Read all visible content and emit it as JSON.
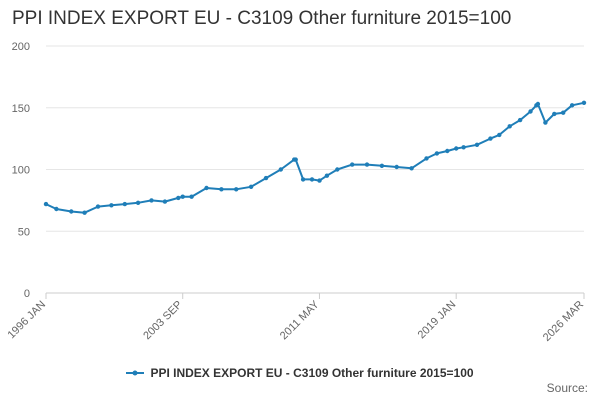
{
  "chart_data": {
    "type": "line",
    "title": "PPI INDEX EXPORT EU - C3109 Other furniture 2015=100",
    "xlabel": "",
    "ylabel": "",
    "ylim": [
      0,
      200
    ],
    "yticks": [
      0,
      50,
      100,
      150,
      200
    ],
    "xticks": [
      "1996 JAN",
      "2003 SEP",
      "2011 MAY",
      "2019 JAN",
      "2026 MAR"
    ],
    "grid": true,
    "legend_position": "bottom",
    "series": [
      {
        "name": "PPI INDEX EXPORT EU - C3109 Other furniture 2015=100",
        "color": "#1f7eb8",
        "x": [
          "1996 JAN",
          "1996 AUG",
          "1997 JUN",
          "1998 MAR",
          "1998 DEC",
          "1999 SEP",
          "2000 JUN",
          "2001 MAR",
          "2001 DEC",
          "2002 SEP",
          "2003 JUN",
          "2003 SEP",
          "2004 MAR",
          "2005 JAN",
          "2005 NOV",
          "2006 SEP",
          "2007 JUL",
          "2008 MAY",
          "2009 MAR",
          "2009 DEC",
          "2010 JAN",
          "2010 JUN",
          "2010 DEC",
          "2011 MAY",
          "2011 OCT",
          "2012 MAY",
          "2013 MAR",
          "2014 JAN",
          "2014 NOV",
          "2015 SEP",
          "2016 JUL",
          "2017 MAY",
          "2017 DEC",
          "2018 JUL",
          "2019 JAN",
          "2019 JUN",
          "2020 MAR",
          "2020 DEC",
          "2021 JUN",
          "2022 JAN",
          "2022 AUG",
          "2023 MAR",
          "2023 JUL",
          "2023 AUG",
          "2024 JAN",
          "2024 JUL",
          "2025 JAN",
          "2025 JUL",
          "2026 MAR"
        ],
        "values": [
          72,
          68,
          66,
          65,
          70,
          71,
          72,
          73,
          75,
          74,
          77,
          78,
          78,
          85,
          84,
          84,
          86,
          93,
          100,
          108,
          108,
          92,
          92,
          91,
          95,
          100,
          104,
          104,
          103,
          102,
          101,
          109,
          113,
          115,
          117,
          118,
          120,
          125,
          128,
          135,
          140,
          147,
          152,
          153,
          138,
          145,
          146,
          152,
          154
        ]
      }
    ]
  },
  "source_label": "Source:"
}
